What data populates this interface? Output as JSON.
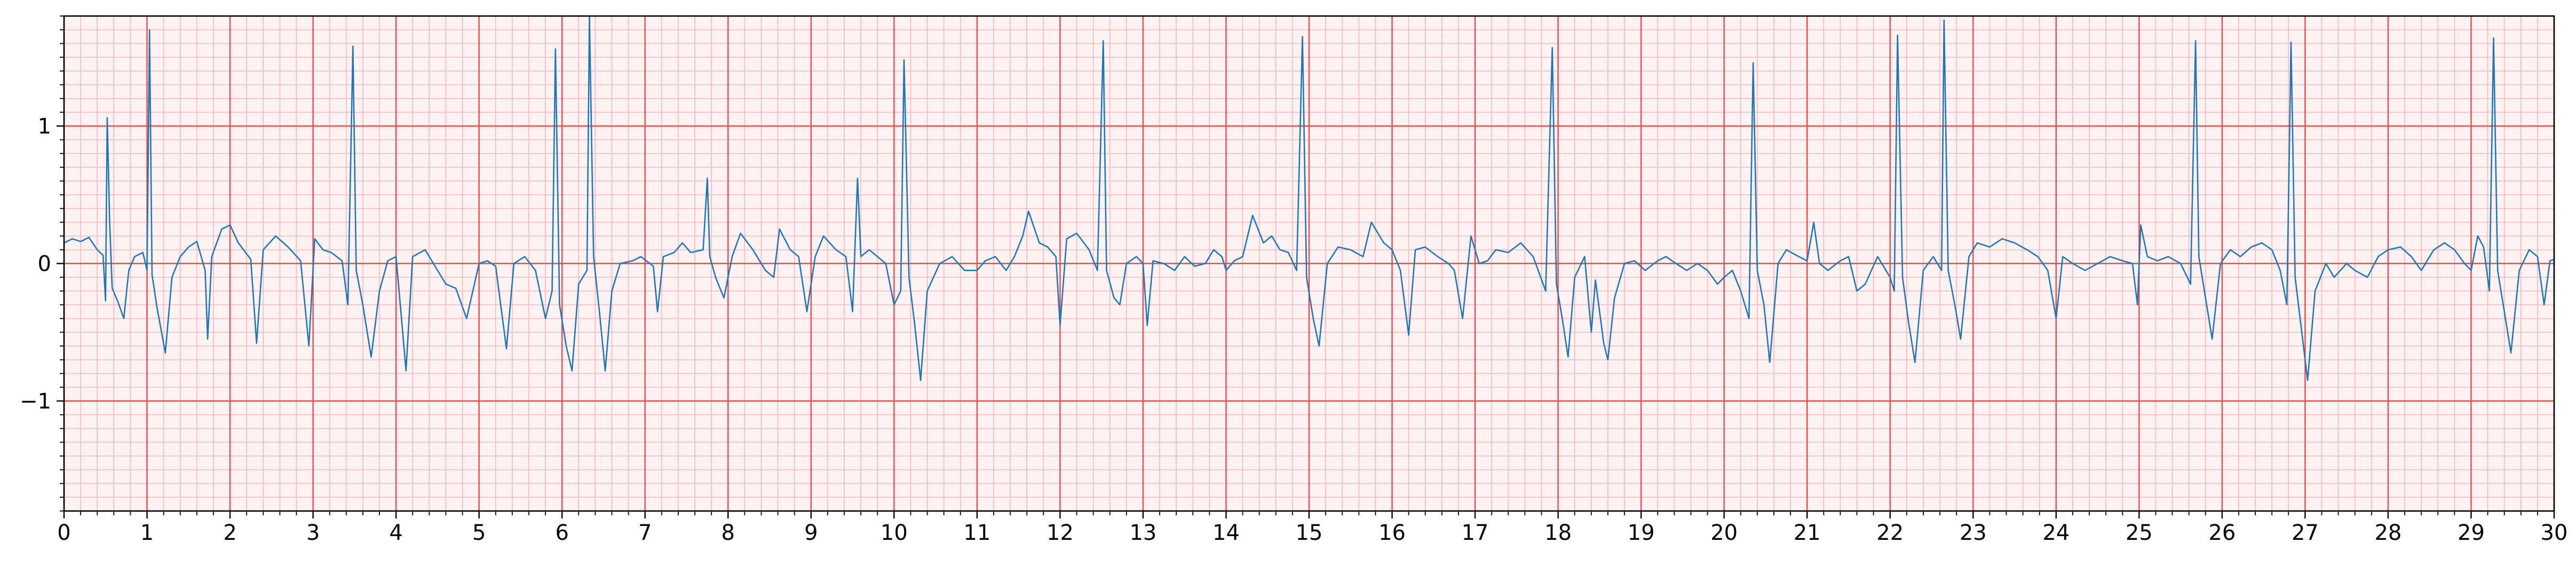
{
  "chart_data": {
    "type": "line",
    "title": "",
    "xlabel": "",
    "ylabel": "",
    "xlim": [
      0,
      30
    ],
    "ylim": [
      -1.8,
      1.8
    ],
    "x_ticks": [
      0,
      1,
      2,
      3,
      4,
      5,
      6,
      7,
      8,
      9,
      10,
      11,
      12,
      13,
      14,
      15,
      16,
      17,
      18,
      19,
      20,
      21,
      22,
      23,
      24,
      25,
      26,
      27,
      28,
      29,
      30
    ],
    "x_tick_labels": [
      "0",
      "1",
      "2",
      "3",
      "4",
      "5",
      "6",
      "7",
      "8",
      "9",
      "10",
      "11",
      "12",
      "13",
      "14",
      "15",
      "16",
      "17",
      "18",
      "19",
      "20",
      "21",
      "22",
      "23",
      "24",
      "25",
      "26",
      "27",
      "28",
      "29",
      "30"
    ],
    "y_ticks": [
      -1,
      0,
      1
    ],
    "y_tick_labels": [
      "−1",
      "0",
      "1"
    ],
    "grid": "on",
    "grid_major_color": "#e8484d",
    "grid_minor_color": "#f9b8ba",
    "background_color": "#fff2f2",
    "series": [
      {
        "color": "#1f77b4",
        "points": [
          [
            0.0,
            0.15
          ],
          [
            0.1,
            0.18
          ],
          [
            0.2,
            0.16
          ],
          [
            0.3,
            0.19
          ],
          [
            0.4,
            0.1
          ],
          [
            0.47,
            0.06
          ],
          [
            0.5,
            -0.27
          ],
          [
            0.52,
            1.06
          ],
          [
            0.55,
            0.3
          ],
          [
            0.58,
            -0.18
          ],
          [
            0.65,
            -0.28
          ],
          [
            0.72,
            -0.4
          ],
          [
            0.78,
            -0.05
          ],
          [
            0.85,
            0.05
          ],
          [
            0.95,
            0.08
          ],
          [
            1.0,
            -0.05
          ],
          [
            1.03,
            1.7
          ],
          [
            1.06,
            -0.08
          ],
          [
            1.12,
            -0.32
          ],
          [
            1.22,
            -0.65
          ],
          [
            1.3,
            -0.1
          ],
          [
            1.4,
            0.05
          ],
          [
            1.5,
            0.12
          ],
          [
            1.6,
            0.16
          ],
          [
            1.7,
            -0.05
          ],
          [
            1.73,
            -0.55
          ],
          [
            1.78,
            0.05
          ],
          [
            1.9,
            0.25
          ],
          [
            2.0,
            0.28
          ],
          [
            2.1,
            0.15
          ],
          [
            2.25,
            0.03
          ],
          [
            2.32,
            -0.58
          ],
          [
            2.4,
            0.1
          ],
          [
            2.55,
            0.2
          ],
          [
            2.7,
            0.12
          ],
          [
            2.85,
            0.02
          ],
          [
            2.95,
            -0.6
          ],
          [
            3.02,
            0.18
          ],
          [
            3.12,
            0.1
          ],
          [
            3.22,
            0.08
          ],
          [
            3.35,
            0.02
          ],
          [
            3.42,
            -0.3
          ],
          [
            3.48,
            1.58
          ],
          [
            3.52,
            -0.05
          ],
          [
            3.6,
            -0.3
          ],
          [
            3.7,
            -0.68
          ],
          [
            3.8,
            -0.2
          ],
          [
            3.9,
            0.02
          ],
          [
            4.0,
            0.05
          ],
          [
            4.08,
            -0.5
          ],
          [
            4.12,
            -0.78
          ],
          [
            4.2,
            0.05
          ],
          [
            4.35,
            0.1
          ],
          [
            4.5,
            -0.05
          ],
          [
            4.6,
            -0.15
          ],
          [
            4.72,
            -0.18
          ],
          [
            4.85,
            -0.4
          ],
          [
            5.0,
            0.0
          ],
          [
            5.1,
            0.02
          ],
          [
            5.2,
            -0.02
          ],
          [
            5.33,
            -0.62
          ],
          [
            5.42,
            0.0
          ],
          [
            5.55,
            0.05
          ],
          [
            5.68,
            -0.05
          ],
          [
            5.8,
            -0.4
          ],
          [
            5.88,
            -0.2
          ],
          [
            5.92,
            1.56
          ],
          [
            5.97,
            -0.3
          ],
          [
            6.05,
            -0.6
          ],
          [
            6.12,
            -0.78
          ],
          [
            6.2,
            -0.15
          ],
          [
            6.3,
            -0.05
          ],
          [
            6.33,
            1.8
          ],
          [
            6.38,
            0.05
          ],
          [
            6.45,
            -0.35
          ],
          [
            6.52,
            -0.78
          ],
          [
            6.6,
            -0.2
          ],
          [
            6.7,
            0.0
          ],
          [
            6.85,
            0.02
          ],
          [
            6.95,
            0.05
          ],
          [
            7.1,
            -0.02
          ],
          [
            7.15,
            -0.35
          ],
          [
            7.22,
            0.05
          ],
          [
            7.35,
            0.08
          ],
          [
            7.45,
            0.15
          ],
          [
            7.55,
            0.08
          ],
          [
            7.7,
            0.1
          ],
          [
            7.75,
            0.62
          ],
          [
            7.78,
            0.05
          ],
          [
            7.85,
            -0.1
          ],
          [
            7.95,
            -0.25
          ],
          [
            8.05,
            0.05
          ],
          [
            8.15,
            0.22
          ],
          [
            8.3,
            0.1
          ],
          [
            8.45,
            -0.05
          ],
          [
            8.55,
            -0.1
          ],
          [
            8.62,
            0.25
          ],
          [
            8.75,
            0.1
          ],
          [
            8.85,
            0.05
          ],
          [
            8.95,
            -0.35
          ],
          [
            9.05,
            0.05
          ],
          [
            9.15,
            0.2
          ],
          [
            9.3,
            0.1
          ],
          [
            9.42,
            0.05
          ],
          [
            9.5,
            -0.35
          ],
          [
            9.56,
            0.62
          ],
          [
            9.6,
            0.05
          ],
          [
            9.7,
            0.1
          ],
          [
            9.8,
            0.05
          ],
          [
            9.9,
            0.0
          ],
          [
            10.0,
            -0.3
          ],
          [
            10.08,
            -0.2
          ],
          [
            10.12,
            1.48
          ],
          [
            10.18,
            -0.1
          ],
          [
            10.25,
            -0.45
          ],
          [
            10.32,
            -0.85
          ],
          [
            10.4,
            -0.2
          ],
          [
            10.55,
            0.0
          ],
          [
            10.7,
            0.05
          ],
          [
            10.85,
            -0.05
          ],
          [
            11.0,
            -0.05
          ],
          [
            11.1,
            0.02
          ],
          [
            11.22,
            0.05
          ],
          [
            11.35,
            -0.05
          ],
          [
            11.45,
            0.05
          ],
          [
            11.55,
            0.2
          ],
          [
            11.62,
            0.38
          ],
          [
            11.75,
            0.15
          ],
          [
            11.85,
            0.12
          ],
          [
            11.95,
            0.05
          ],
          [
            12.0,
            -0.45
          ],
          [
            12.08,
            0.18
          ],
          [
            12.2,
            0.22
          ],
          [
            12.35,
            0.1
          ],
          [
            12.45,
            -0.05
          ],
          [
            12.52,
            1.62
          ],
          [
            12.56,
            -0.05
          ],
          [
            12.65,
            -0.25
          ],
          [
            12.72,
            -0.3
          ],
          [
            12.8,
            0.0
          ],
          [
            12.92,
            0.05
          ],
          [
            13.0,
            0.0
          ],
          [
            13.05,
            -0.45
          ],
          [
            13.12,
            0.02
          ],
          [
            13.25,
            0.0
          ],
          [
            13.38,
            -0.05
          ],
          [
            13.5,
            0.05
          ],
          [
            13.62,
            -0.02
          ],
          [
            13.75,
            0.0
          ],
          [
            13.85,
            0.1
          ],
          [
            13.95,
            0.05
          ],
          [
            14.0,
            -0.05
          ],
          [
            14.1,
            0.02
          ],
          [
            14.2,
            0.05
          ],
          [
            14.32,
            0.35
          ],
          [
            14.45,
            0.15
          ],
          [
            14.55,
            0.2
          ],
          [
            14.65,
            0.1
          ],
          [
            14.75,
            0.08
          ],
          [
            14.85,
            -0.05
          ],
          [
            14.92,
            1.65
          ],
          [
            14.97,
            -0.1
          ],
          [
            15.05,
            -0.4
          ],
          [
            15.12,
            -0.6
          ],
          [
            15.22,
            0.0
          ],
          [
            15.35,
            0.12
          ],
          [
            15.5,
            0.1
          ],
          [
            15.65,
            0.05
          ],
          [
            15.75,
            0.3
          ],
          [
            15.9,
            0.15
          ],
          [
            16.0,
            0.1
          ],
          [
            16.1,
            -0.05
          ],
          [
            16.2,
            -0.52
          ],
          [
            16.28,
            0.1
          ],
          [
            16.4,
            0.12
          ],
          [
            16.55,
            0.05
          ],
          [
            16.68,
            0.0
          ],
          [
            16.75,
            -0.05
          ],
          [
            16.85,
            -0.4
          ],
          [
            16.95,
            0.2
          ],
          [
            17.05,
            0.0
          ],
          [
            17.15,
            0.02
          ],
          [
            17.25,
            0.1
          ],
          [
            17.4,
            0.08
          ],
          [
            17.55,
            0.15
          ],
          [
            17.7,
            0.05
          ],
          [
            17.85,
            -0.2
          ],
          [
            17.93,
            1.57
          ],
          [
            17.98,
            -0.15
          ],
          [
            18.05,
            -0.4
          ],
          [
            18.12,
            -0.68
          ],
          [
            18.2,
            -0.1
          ],
          [
            18.32,
            0.05
          ],
          [
            18.4,
            -0.5
          ],
          [
            18.45,
            -0.12
          ],
          [
            18.55,
            -0.58
          ],
          [
            18.6,
            -0.7
          ],
          [
            18.68,
            -0.25
          ],
          [
            18.8,
            0.0
          ],
          [
            18.92,
            0.02
          ],
          [
            19.05,
            -0.05
          ],
          [
            19.2,
            0.02
          ],
          [
            19.3,
            0.05
          ],
          [
            19.42,
            0.0
          ],
          [
            19.55,
            -0.05
          ],
          [
            19.68,
            0.0
          ],
          [
            19.8,
            -0.05
          ],
          [
            19.92,
            -0.15
          ],
          [
            20.0,
            -0.1
          ],
          [
            20.1,
            -0.05
          ],
          [
            20.2,
            -0.2
          ],
          [
            20.3,
            -0.4
          ],
          [
            20.35,
            1.46
          ],
          [
            20.4,
            -0.05
          ],
          [
            20.48,
            -0.3
          ],
          [
            20.55,
            -0.72
          ],
          [
            20.65,
            0.0
          ],
          [
            20.75,
            0.1
          ],
          [
            20.9,
            0.05
          ],
          [
            21.0,
            0.02
          ],
          [
            21.08,
            0.3
          ],
          [
            21.15,
            0.0
          ],
          [
            21.25,
            -0.05
          ],
          [
            21.4,
            0.02
          ],
          [
            21.5,
            0.05
          ],
          [
            21.6,
            -0.2
          ],
          [
            21.7,
            -0.15
          ],
          [
            21.85,
            0.05
          ],
          [
            22.0,
            -0.1
          ],
          [
            22.05,
            -0.2
          ],
          [
            22.09,
            1.66
          ],
          [
            22.15,
            -0.1
          ],
          [
            22.22,
            -0.42
          ],
          [
            22.3,
            -0.72
          ],
          [
            22.4,
            -0.05
          ],
          [
            22.52,
            0.05
          ],
          [
            22.62,
            -0.05
          ],
          [
            22.65,
            1.77
          ],
          [
            22.7,
            -0.05
          ],
          [
            22.78,
            -0.3
          ],
          [
            22.85,
            -0.55
          ],
          [
            22.95,
            0.05
          ],
          [
            23.05,
            0.15
          ],
          [
            23.2,
            0.12
          ],
          [
            23.35,
            0.18
          ],
          [
            23.5,
            0.15
          ],
          [
            23.65,
            0.1
          ],
          [
            23.78,
            0.05
          ],
          [
            23.9,
            -0.05
          ],
          [
            24.0,
            -0.4
          ],
          [
            24.08,
            0.05
          ],
          [
            24.2,
            0.0
          ],
          [
            24.35,
            -0.05
          ],
          [
            24.5,
            0.0
          ],
          [
            24.65,
            0.05
          ],
          [
            24.8,
            0.02
          ],
          [
            24.92,
            0.0
          ],
          [
            24.98,
            -0.3
          ],
          [
            25.02,
            0.28
          ],
          [
            25.1,
            0.05
          ],
          [
            25.22,
            0.02
          ],
          [
            25.35,
            0.05
          ],
          [
            25.5,
            0.0
          ],
          [
            25.62,
            -0.15
          ],
          [
            25.68,
            1.62
          ],
          [
            25.72,
            0.05
          ],
          [
            25.8,
            -0.25
          ],
          [
            25.88,
            -0.55
          ],
          [
            25.98,
            0.0
          ],
          [
            26.1,
            0.1
          ],
          [
            26.22,
            0.05
          ],
          [
            26.35,
            0.12
          ],
          [
            26.48,
            0.15
          ],
          [
            26.6,
            0.1
          ],
          [
            26.7,
            -0.05
          ],
          [
            26.78,
            -0.3
          ],
          [
            26.83,
            1.61
          ],
          [
            26.88,
            -0.1
          ],
          [
            26.95,
            -0.45
          ],
          [
            27.03,
            -0.85
          ],
          [
            27.12,
            -0.2
          ],
          [
            27.25,
            0.0
          ],
          [
            27.35,
            -0.1
          ],
          [
            27.5,
            0.0
          ],
          [
            27.6,
            -0.05
          ],
          [
            27.75,
            -0.1
          ],
          [
            27.88,
            0.05
          ],
          [
            28.0,
            0.1
          ],
          [
            28.15,
            0.12
          ],
          [
            28.28,
            0.05
          ],
          [
            28.4,
            -0.05
          ],
          [
            28.55,
            0.1
          ],
          [
            28.68,
            0.15
          ],
          [
            28.8,
            0.1
          ],
          [
            28.92,
            0.0
          ],
          [
            29.0,
            -0.05
          ],
          [
            29.08,
            0.2
          ],
          [
            29.15,
            0.12
          ],
          [
            29.22,
            -0.2
          ],
          [
            29.27,
            1.64
          ],
          [
            29.32,
            -0.05
          ],
          [
            29.4,
            -0.35
          ],
          [
            29.48,
            -0.65
          ],
          [
            29.58,
            -0.05
          ],
          [
            29.7,
            0.1
          ],
          [
            29.8,
            0.05
          ],
          [
            29.88,
            -0.3
          ],
          [
            29.95,
            0.02
          ],
          [
            30.0,
            0.03
          ]
        ]
      }
    ]
  }
}
